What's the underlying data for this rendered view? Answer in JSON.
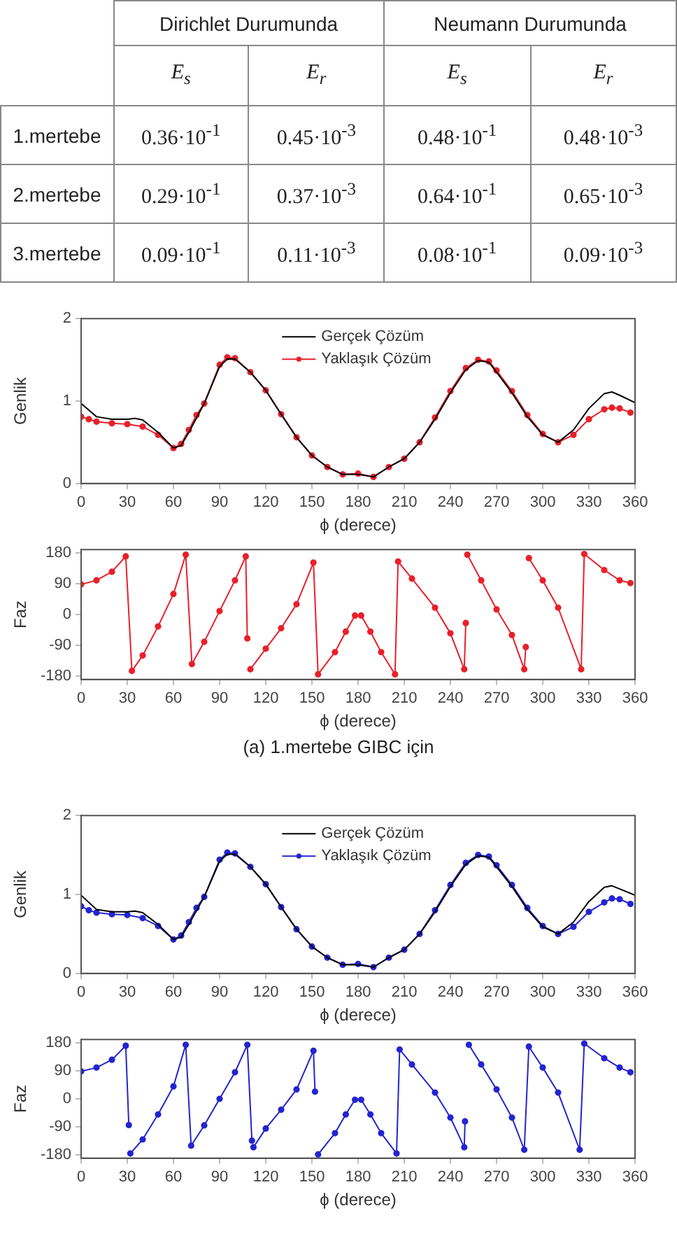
{
  "chart_data": [
    {
      "type": "other",
      "annotations": [
        "Dirichlet Durumunda",
        "Neumann Durumunda"
      ],
      "categories": [
        "E$_{s}$",
        "E$_{r}$",
        "E$_{s}$",
        "E$_{r}$"
      ],
      "y_categories": [
        "1.mertebe",
        "2.mertebe",
        "3.mertebe"
      ],
      "cell_labels": [
        [
          "0.36·10$^{-1}$",
          "0.45·10$^{-3}$",
          "0.48·10$^{-1}$",
          "0.48·10$^{-3}$"
        ],
        [
          "0.29·10$^{-1}$",
          "0.37·10$^{-3}$",
          "0.64·10$^{-1}$",
          "0.65·10$^{-3}$"
        ],
        [
          "0.09·10$^{-1}$",
          "0.11·10$^{-3}$",
          "0.08·10$^{-1}$",
          "0.09·10$^{-3}$"
        ]
      ]
    },
    {
      "type": "line",
      "xlabel": "ϕ (derece)",
      "ylabel": "Genlik",
      "xlim": [
        0,
        360
      ],
      "xticks": [
        0,
        30,
        60,
        90,
        120,
        150,
        180,
        210,
        240,
        270,
        300,
        330,
        360
      ],
      "ylim": [
        0,
        2
      ],
      "yticks": [
        0,
        1,
        2
      ],
      "legend": "top",
      "series": [
        {
          "name": "Gerçek Çözüm",
          "color": "#000000",
          "marker": "none",
          "x": [
            0,
            10,
            20,
            30,
            35,
            40,
            50,
            60,
            65,
            70,
            80,
            90,
            95,
            100,
            110,
            120,
            130,
            140,
            150,
            160,
            170,
            180,
            190,
            200,
            210,
            220,
            230,
            240,
            250,
            258,
            265,
            270,
            280,
            290,
            300,
            310,
            320,
            330,
            340,
            345,
            350,
            360
          ],
          "values": [
            0.97,
            0.81,
            0.78,
            0.78,
            0.79,
            0.77,
            0.62,
            0.43,
            0.46,
            0.62,
            0.97,
            1.42,
            1.51,
            1.51,
            1.35,
            1.13,
            0.84,
            0.56,
            0.34,
            0.2,
            0.11,
            0.11,
            0.08,
            0.2,
            0.3,
            0.5,
            0.78,
            1.1,
            1.38,
            1.49,
            1.47,
            1.35,
            1.1,
            0.81,
            0.59,
            0.5,
            0.65,
            0.91,
            1.09,
            1.11,
            1.07,
            0.98
          ]
        },
        {
          "name": "Yaklaşık Çözüm",
          "color": "#e8202a",
          "marker": "circle",
          "x": [
            0,
            5,
            10,
            20,
            30,
            40,
            50,
            60,
            65,
            70,
            75,
            80,
            90,
            95,
            100,
            110,
            120,
            130,
            140,
            150,
            160,
            170,
            180,
            190,
            200,
            210,
            220,
            230,
            240,
            250,
            258,
            265,
            270,
            280,
            290,
            300,
            310,
            320,
            330,
            340,
            345,
            350,
            357
          ],
          "values": [
            0.81,
            0.78,
            0.75,
            0.73,
            0.72,
            0.69,
            0.59,
            0.43,
            0.48,
            0.65,
            0.83,
            0.97,
            1.44,
            1.53,
            1.52,
            1.35,
            1.13,
            0.84,
            0.56,
            0.34,
            0.2,
            0.11,
            0.12,
            0.08,
            0.2,
            0.3,
            0.5,
            0.8,
            1.12,
            1.4,
            1.5,
            1.48,
            1.37,
            1.12,
            0.83,
            0.6,
            0.5,
            0.59,
            0.78,
            0.9,
            0.92,
            0.91,
            0.86
          ]
        }
      ]
    },
    {
      "type": "line",
      "xlabel": "ϕ (derece)",
      "ylabel": "Faz",
      "xlim": [
        0,
        360
      ],
      "xticks": [
        0,
        30,
        60,
        90,
        120,
        150,
        180,
        210,
        240,
        270,
        300,
        330,
        360
      ],
      "ylim": [
        -190,
        190
      ],
      "yticks": [
        -180,
        -90,
        0,
        90,
        180
      ],
      "annotations": [
        "(a) 1.mertebe GIBC için"
      ],
      "series": [
        {
          "color": "#e8202a",
          "marker": "circle",
          "x": [
            0,
            10,
            20,
            29,
            33,
            40,
            50,
            60,
            68,
            72,
            80,
            90,
            100,
            107,
            108,
            109,
            110,
            120,
            130,
            140,
            151,
            154,
            165,
            172,
            178,
            182,
            188,
            195,
            204,
            206,
            215,
            230,
            240,
            249,
            250,
            250.5,
            251,
            260,
            270,
            280,
            288,
            289,
            289.5,
            291,
            300,
            310,
            325,
            327,
            340,
            350,
            357
          ],
          "values": [
            88,
            100,
            125,
            170,
            -165,
            -120,
            -35,
            60,
            175,
            -145,
            -80,
            10,
            100,
            170,
            -70,
            null,
            -160,
            -100,
            -40,
            30,
            152,
            -175,
            -110,
            -50,
            -3,
            -3,
            -50,
            -110,
            -175,
            155,
            105,
            20,
            -55,
            -160,
            -25,
            null,
            175,
            100,
            15,
            -60,
            -160,
            -95,
            null,
            165,
            100,
            20,
            -160,
            177,
            130,
            100,
            92
          ]
        }
      ]
    },
    {
      "type": "line",
      "xlabel": "ϕ (derece)",
      "ylabel": "Genlik",
      "xlim": [
        0,
        360
      ],
      "xticks": [
        0,
        30,
        60,
        90,
        120,
        150,
        180,
        210,
        240,
        270,
        300,
        330,
        360
      ],
      "ylim": [
        0,
        2
      ],
      "yticks": [
        0,
        1,
        2
      ],
      "legend": "top",
      "series": [
        {
          "name": "Gerçek Çözüm",
          "color": "#000000",
          "marker": "none",
          "x": [
            0,
            10,
            20,
            30,
            35,
            40,
            50,
            60,
            65,
            70,
            80,
            90,
            95,
            100,
            110,
            120,
            130,
            140,
            150,
            160,
            170,
            180,
            190,
            200,
            210,
            220,
            230,
            240,
            250,
            258,
            265,
            270,
            280,
            290,
            300,
            310,
            320,
            330,
            340,
            345,
            350,
            360
          ],
          "values": [
            0.99,
            0.81,
            0.78,
            0.78,
            0.79,
            0.77,
            0.62,
            0.43,
            0.46,
            0.62,
            0.97,
            1.42,
            1.51,
            1.51,
            1.35,
            1.13,
            0.84,
            0.56,
            0.34,
            0.2,
            0.11,
            0.11,
            0.08,
            0.2,
            0.3,
            0.5,
            0.78,
            1.1,
            1.38,
            1.49,
            1.47,
            1.35,
            1.1,
            0.81,
            0.59,
            0.5,
            0.65,
            0.91,
            1.09,
            1.11,
            1.07,
            0.99
          ]
        },
        {
          "name": "Yaklaşık Çözüm",
          "color": "#2424d0",
          "marker": "circle",
          "x": [
            0,
            5,
            10,
            20,
            30,
            40,
            50,
            60,
            65,
            70,
            75,
            80,
            90,
            95,
            100,
            110,
            120,
            130,
            140,
            150,
            160,
            170,
            180,
            190,
            200,
            210,
            220,
            230,
            240,
            250,
            258,
            265,
            270,
            280,
            290,
            300,
            310,
            320,
            330,
            340,
            345,
            350,
            357
          ],
          "values": [
            0.85,
            0.8,
            0.77,
            0.75,
            0.74,
            0.7,
            0.6,
            0.43,
            0.48,
            0.65,
            0.83,
            0.97,
            1.44,
            1.53,
            1.52,
            1.35,
            1.13,
            0.84,
            0.56,
            0.34,
            0.2,
            0.11,
            0.12,
            0.08,
            0.2,
            0.3,
            0.5,
            0.8,
            1.12,
            1.4,
            1.5,
            1.48,
            1.37,
            1.12,
            0.83,
            0.6,
            0.5,
            0.59,
            0.78,
            0.9,
            0.95,
            0.94,
            0.88
          ]
        }
      ]
    },
    {
      "type": "line",
      "xlabel": "ϕ (derece)",
      "ylabel": "Faz",
      "xlim": [
        0,
        360
      ],
      "xticks": [
        0,
        30,
        60,
        90,
        120,
        150,
        180,
        210,
        240,
        270,
        300,
        330,
        360
      ],
      "ylim": [
        -190,
        190
      ],
      "yticks": [
        -180,
        -90,
        0,
        90,
        180
      ],
      "series": [
        {
          "color": "#2424d0",
          "marker": "circle",
          "x": [
            0,
            10,
            20,
            29,
            31,
            31.5,
            32,
            40,
            50,
            60,
            68,
            71.5,
            80,
            90,
            100,
            108,
            111,
            111.5,
            112,
            120,
            130,
            140,
            151,
            152,
            153,
            154,
            165,
            172,
            178,
            182,
            188,
            195,
            205,
            207,
            215,
            230,
            240,
            249,
            249.5,
            250,
            252,
            260,
            270,
            280,
            288,
            291,
            300,
            310,
            324,
            327,
            340,
            350,
            357
          ],
          "values": [
            88,
            100,
            125,
            170,
            -84,
            null,
            -175,
            -130,
            -50,
            40,
            173,
            -150,
            -85,
            0,
            85,
            173,
            -134,
            null,
            -155,
            -95,
            -35,
            30,
            154,
            23,
            null,
            -178,
            -110,
            -50,
            -3,
            -3,
            -50,
            -110,
            -175,
            158,
            110,
            20,
            -60,
            -155,
            -72,
            null,
            173,
            110,
            30,
            -60,
            -163,
            167,
            100,
            20,
            -163,
            177,
            130,
            100,
            85
          ]
        }
      ]
    }
  ]
}
